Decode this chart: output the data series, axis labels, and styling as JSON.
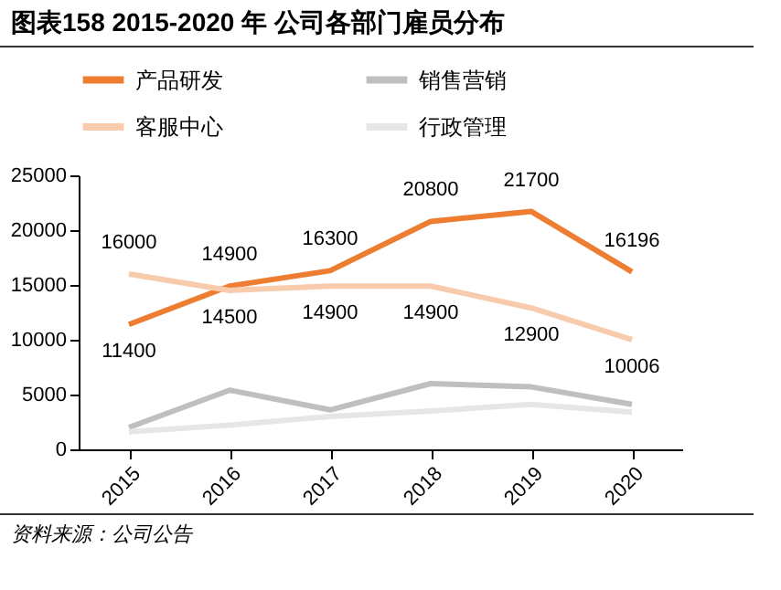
{
  "chart_data": {
    "type": "line",
    "title": "图表158  2015-2020 年 公司各部门雇员分布",
    "categories": [
      "2015",
      "2016",
      "2017",
      "2018",
      "2019",
      "2020"
    ],
    "series": [
      {
        "name": "产品研发",
        "color": "#ed7d31",
        "values": [
          11400,
          14900,
          16300,
          20800,
          21700,
          16196
        ],
        "value_labels": [
          "11400",
          "14900",
          "16300",
          "20800",
          "21700",
          "16196"
        ]
      },
      {
        "name": "销售营销",
        "color": "#bfbfbf",
        "values": [
          2000,
          5400,
          3600,
          6000,
          5700,
          4100
        ]
      },
      {
        "name": "客服中心",
        "color": "#f8cbad",
        "values": [
          16000,
          14500,
          14900,
          14900,
          12900,
          10006
        ],
        "value_labels": [
          "16000",
          "14500",
          "14900",
          "14900",
          "12900",
          "10006"
        ]
      },
      {
        "name": "行政管理",
        "color": "#e7e6e6",
        "values": [
          1600,
          2200,
          3000,
          3500,
          4100,
          3400
        ]
      }
    ],
    "ylim": [
      0,
      25000
    ],
    "yticks": [
      0,
      5000,
      10000,
      15000,
      20000,
      25000
    ],
    "grid": false,
    "legend": "top",
    "marker": "none",
    "line_style": "solid",
    "annotations": [
      "资料来源：公司公告"
    ]
  }
}
